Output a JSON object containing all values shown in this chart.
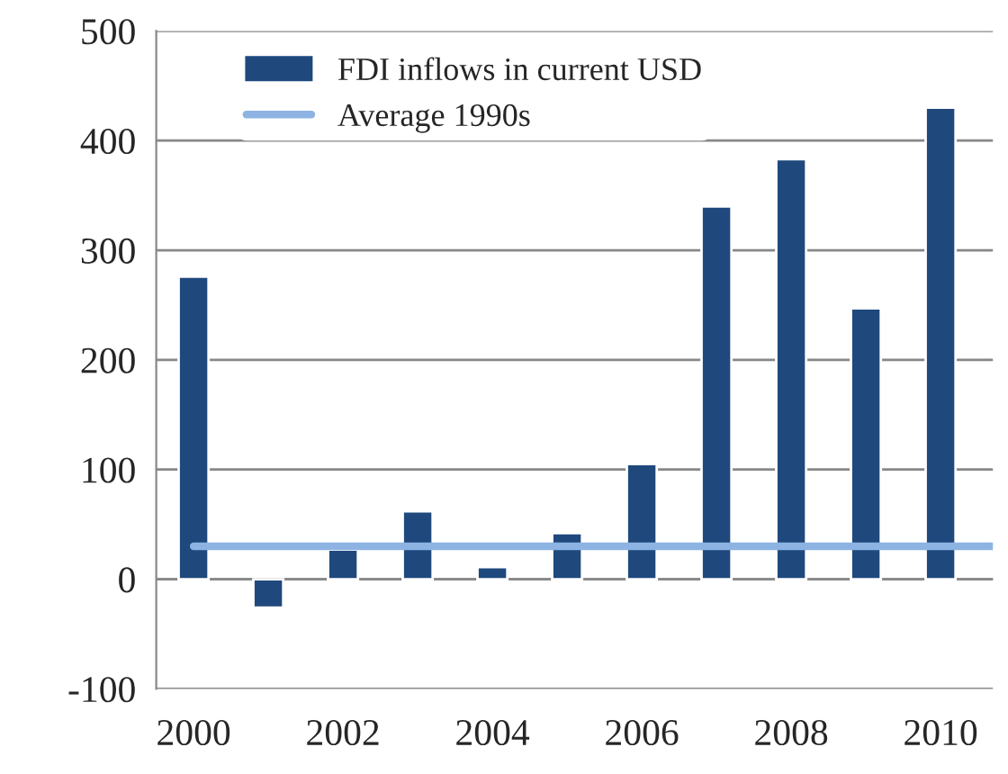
{
  "chart_data": {
    "type": "bar",
    "categories": [
      "2000",
      null,
      "2002",
      null,
      "2004",
      null,
      "2006",
      null,
      "2008",
      null,
      "2010"
    ],
    "series": [
      {
        "name": "FDI inflows in current USD",
        "color": "#1f497d",
        "values": [
          276,
          -26,
          27,
          62,
          11,
          42,
          105,
          340,
          383,
          247,
          430
        ]
      }
    ],
    "ref_lines": [
      {
        "axis": "y",
        "value": 30,
        "label": "Average 1990s",
        "color": "#8db3e2",
        "line_style": "solid"
      }
    ],
    "ylim": [
      -100,
      500
    ],
    "yticks": [
      -100,
      0,
      100,
      200,
      300,
      400,
      500
    ],
    "grid": "y",
    "legend": "top left"
  }
}
